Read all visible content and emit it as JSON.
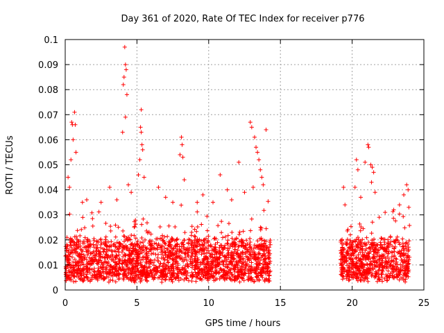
{
  "chart_data": {
    "type": "scatter",
    "title": "Day 361 of 2020, Rate Of TEC Index for receiver p776",
    "xlabel": "GPS time / hours",
    "ylabel": "ROTI / TECUs",
    "xlim": [
      0,
      25
    ],
    "ylim": [
      0,
      0.1
    ],
    "x_ticks": [
      "0",
      "5",
      "10",
      "15",
      "20",
      "25"
    ],
    "y_ticks": [
      "0",
      "0.01",
      "0.02",
      "0.03",
      "0.04",
      "0.05",
      "0.06",
      "0.07",
      "0.08",
      "0.09",
      "0.1"
    ],
    "grid": true,
    "marker": "+",
    "color": "#ff0000",
    "coverage_hours": [
      [
        0,
        14.3
      ],
      [
        19.2,
        24.0
      ]
    ],
    "baseline_range": [
      0.005,
      0.02
    ],
    "highlight_points": [
      {
        "x": 0.2,
        "y": 0.045
      },
      {
        "x": 0.3,
        "y": 0.041
      },
      {
        "x": 0.4,
        "y": 0.052
      },
      {
        "x": 0.45,
        "y": 0.067
      },
      {
        "x": 0.5,
        "y": 0.066
      },
      {
        "x": 0.55,
        "y": 0.06
      },
      {
        "x": 0.65,
        "y": 0.071
      },
      {
        "x": 0.7,
        "y": 0.066
      },
      {
        "x": 0.75,
        "y": 0.055
      },
      {
        "x": 1.2,
        "y": 0.035
      },
      {
        "x": 1.5,
        "y": 0.036
      },
      {
        "x": 2.5,
        "y": 0.035
      },
      {
        "x": 3.1,
        "y": 0.041
      },
      {
        "x": 3.6,
        "y": 0.036
      },
      {
        "x": 4.0,
        "y": 0.063
      },
      {
        "x": 4.05,
        "y": 0.082
      },
      {
        "x": 4.1,
        "y": 0.085
      },
      {
        "x": 4.15,
        "y": 0.097
      },
      {
        "x": 4.2,
        "y": 0.09
      },
      {
        "x": 4.25,
        "y": 0.088
      },
      {
        "x": 4.3,
        "y": 0.078
      },
      {
        "x": 4.2,
        "y": 0.069
      },
      {
        "x": 4.4,
        "y": 0.042
      },
      {
        "x": 4.6,
        "y": 0.039
      },
      {
        "x": 5.1,
        "y": 0.046
      },
      {
        "x": 5.25,
        "y": 0.065
      },
      {
        "x": 5.3,
        "y": 0.072
      },
      {
        "x": 5.35,
        "y": 0.058
      },
      {
        "x": 5.4,
        "y": 0.056
      },
      {
        "x": 5.3,
        "y": 0.063
      },
      {
        "x": 5.2,
        "y": 0.052
      },
      {
        "x": 5.5,
        "y": 0.045
      },
      {
        "x": 6.5,
        "y": 0.041
      },
      {
        "x": 7.0,
        "y": 0.037
      },
      {
        "x": 7.5,
        "y": 0.035
      },
      {
        "x": 8.0,
        "y": 0.054
      },
      {
        "x": 8.1,
        "y": 0.061
      },
      {
        "x": 8.15,
        "y": 0.058
      },
      {
        "x": 8.2,
        "y": 0.053
      },
      {
        "x": 8.3,
        "y": 0.044
      },
      {
        "x": 9.2,
        "y": 0.035
      },
      {
        "x": 9.6,
        "y": 0.038
      },
      {
        "x": 10.3,
        "y": 0.035
      },
      {
        "x": 10.8,
        "y": 0.046
      },
      {
        "x": 11.3,
        "y": 0.04
      },
      {
        "x": 11.6,
        "y": 0.036
      },
      {
        "x": 12.1,
        "y": 0.051
      },
      {
        "x": 12.5,
        "y": 0.039
      },
      {
        "x": 12.9,
        "y": 0.067
      },
      {
        "x": 13.0,
        "y": 0.065
      },
      {
        "x": 13.2,
        "y": 0.061
      },
      {
        "x": 13.3,
        "y": 0.057
      },
      {
        "x": 13.4,
        "y": 0.055
      },
      {
        "x": 13.5,
        "y": 0.052
      },
      {
        "x": 13.6,
        "y": 0.048
      },
      {
        "x": 13.7,
        "y": 0.045
      },
      {
        "x": 13.8,
        "y": 0.042
      },
      {
        "x": 14.0,
        "y": 0.064
      },
      {
        "x": 13.1,
        "y": 0.041
      },
      {
        "x": 19.4,
        "y": 0.041
      },
      {
        "x": 19.5,
        "y": 0.034
      },
      {
        "x": 20.2,
        "y": 0.041
      },
      {
        "x": 20.3,
        "y": 0.052
      },
      {
        "x": 20.4,
        "y": 0.048
      },
      {
        "x": 20.6,
        "y": 0.037
      },
      {
        "x": 20.9,
        "y": 0.051
      },
      {
        "x": 21.1,
        "y": 0.058
      },
      {
        "x": 21.15,
        "y": 0.057
      },
      {
        "x": 21.3,
        "y": 0.05
      },
      {
        "x": 21.4,
        "y": 0.049
      },
      {
        "x": 21.5,
        "y": 0.047
      },
      {
        "x": 21.35,
        "y": 0.043
      },
      {
        "x": 21.6,
        "y": 0.039
      },
      {
        "x": 22.3,
        "y": 0.031
      },
      {
        "x": 22.9,
        "y": 0.032
      },
      {
        "x": 23.3,
        "y": 0.034
      },
      {
        "x": 23.6,
        "y": 0.038
      },
      {
        "x": 23.8,
        "y": 0.042
      },
      {
        "x": 23.9,
        "y": 0.04
      },
      {
        "x": 23.95,
        "y": 0.033
      }
    ]
  }
}
